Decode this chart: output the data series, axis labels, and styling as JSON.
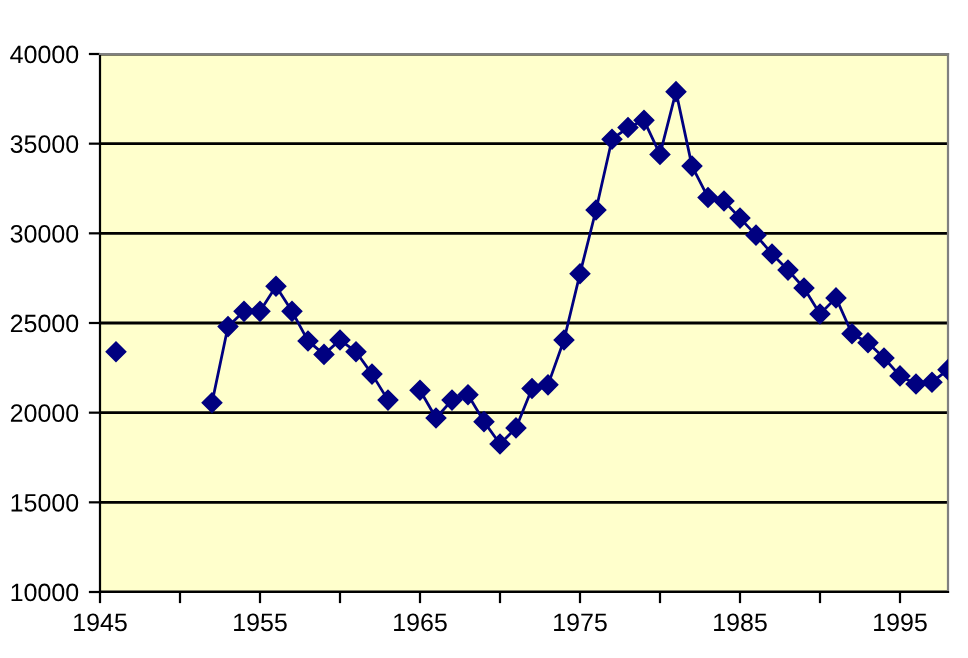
{
  "chart_data": {
    "type": "line",
    "marker": "diamond",
    "line_style": "solid",
    "grid": "y",
    "x": [
      1946,
      1947,
      1948,
      1949,
      1950,
      1951,
      1952,
      1953,
      1954,
      1955,
      1956,
      1957,
      1958,
      1959,
      1960,
      1961,
      1962,
      1963,
      1964,
      1965,
      1966,
      1967,
      1968,
      1969,
      1970,
      1971,
      1972,
      1973,
      1974,
      1975,
      1976,
      1977,
      1978,
      1979,
      1980,
      1981,
      1982,
      1983,
      1984,
      1985,
      1986,
      1987,
      1988,
      1989,
      1990,
      1991,
      1992,
      1993,
      1994,
      1995,
      1996,
      1997,
      1998
    ],
    "series": [
      {
        "color": "#000080",
        "values": [
          23400,
          null,
          null,
          null,
          null,
          null,
          20550,
          24800,
          25650,
          25650,
          27050,
          25650,
          24000,
          23250,
          24050,
          23400,
          22150,
          20700,
          null,
          21250,
          19700,
          20700,
          21000,
          19500,
          18250,
          19150,
          21350,
          21550,
          24050,
          27750,
          31300,
          35250,
          35900,
          36300,
          34400,
          37900,
          33750,
          32000,
          31800,
          30850,
          29900,
          28850,
          27950,
          26950,
          25500,
          26400,
          24400,
          23900,
          23050,
          22050,
          21600,
          21700,
          22400
        ]
      }
    ],
    "xlim": [
      1945,
      1998
    ],
    "xticks": [
      1945,
      {
        "value": 1950,
        "label": null
      },
      1955,
      {
        "value": 1960,
        "label": null
      },
      1965,
      {
        "value": 1970,
        "label": null
      },
      1975,
      {
        "value": 1980,
        "label": null
      },
      1985,
      {
        "value": 1990,
        "label": null
      },
      1995
    ],
    "ylim": [
      10000,
      40000
    ],
    "yticks": [
      10000,
      15000,
      20000,
      25000,
      30000,
      35000,
      40000
    ]
  }
}
